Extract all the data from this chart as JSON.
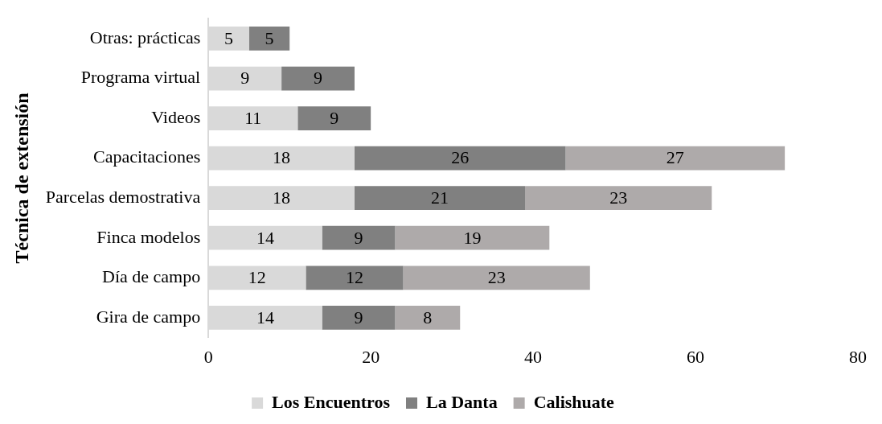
{
  "chart_data": {
    "type": "bar",
    "orientation": "horizontal",
    "stacked": true,
    "ylabel": "Técnica de extensión",
    "categories": [
      "Otras: prácticas",
      "Programa virtual",
      "Videos",
      "Capacitaciones",
      "Parcelas demostrativa",
      "Finca modelos",
      "Día de campo",
      "Gira de campo"
    ],
    "series": [
      {
        "name": "Los Encuentros",
        "color": "#d9d9d9",
        "values": [
          5,
          9,
          11,
          18,
          18,
          14,
          12,
          14
        ]
      },
      {
        "name": "La Danta",
        "color": "#808080",
        "values": [
          5,
          9,
          9,
          26,
          21,
          9,
          12,
          9
        ]
      },
      {
        "name": "Calishuate",
        "color": "#aeaaaa",
        "values": [
          null,
          null,
          null,
          27,
          23,
          19,
          23,
          8
        ]
      }
    ],
    "xlim": [
      0,
      80
    ],
    "xticks": [
      0,
      20,
      40,
      60,
      80
    ],
    "grid": false,
    "legend": "bottom",
    "data_labels": true
  }
}
